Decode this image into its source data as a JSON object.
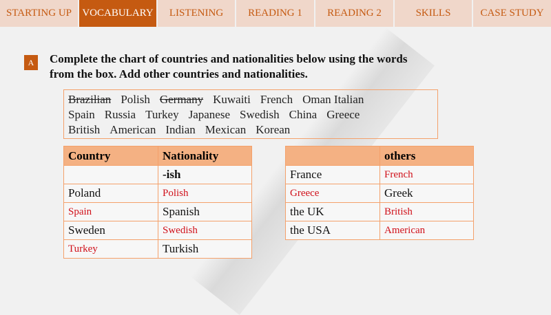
{
  "tabs": [
    {
      "label": "STARTING UP",
      "active": false
    },
    {
      "label": "VOCABULARY",
      "active": true
    },
    {
      "label": "LISTENING",
      "active": false
    },
    {
      "label": "READING 1",
      "active": false
    },
    {
      "label": "READING 2",
      "active": false
    },
    {
      "label": "SKILLS",
      "active": false
    },
    {
      "label": "CASE STUDY",
      "active": false
    }
  ],
  "exercise": {
    "badge": "A",
    "instruction_line1": "Complete the chart of countries and nationalities below using the words",
    "instruction_line2": "from the box. Add other countries and nationalities."
  },
  "word_box": {
    "row1": [
      {
        "w": "Brazilian",
        "struck": true
      },
      {
        "w": "Polish"
      },
      {
        "w": "Germany",
        "struck": true
      },
      {
        "w": "Kuwaiti"
      },
      {
        "w": "French"
      },
      {
        "w": "Oman Italian"
      }
    ],
    "row2": [
      {
        "w": "Spain"
      },
      {
        "w": "Russia"
      },
      {
        "w": "Turkey"
      },
      {
        "w": "Japanese"
      },
      {
        "w": "Swedish"
      },
      {
        "w": "China"
      },
      {
        "w": "Greece"
      }
    ],
    "row3": [
      {
        "w": "British"
      },
      {
        "w": "American"
      },
      {
        "w": "Indian"
      },
      {
        "w": "Mexican"
      },
      {
        "w": "Korean"
      }
    ]
  },
  "table_left": {
    "headers": [
      "Country",
      "Nationality"
    ],
    "subheader": "-ish",
    "rows": [
      {
        "country": "Poland",
        "nationality": "Polish",
        "answer": "nationality"
      },
      {
        "country": "Spain",
        "nationality": "Spanish",
        "answer": "country"
      },
      {
        "country": "Sweden",
        "nationality": "Swedish",
        "answer": "nationality"
      },
      {
        "country": "Turkey",
        "nationality": "Turkish",
        "answer": "country"
      }
    ]
  },
  "table_right": {
    "headers": [
      "",
      "others"
    ],
    "rows": [
      {
        "country": "France",
        "nationality": "French",
        "answer": "nationality"
      },
      {
        "country": "Greece",
        "nationality": "Greek",
        "answer": "country"
      },
      {
        "country": "the UK",
        "nationality": "British",
        "answer": "nationality"
      },
      {
        "country": "the USA",
        "nationality": "American",
        "answer": "nationality"
      }
    ]
  },
  "colors": {
    "accent": "#c55a11",
    "tab_bg": "#f0d7ca",
    "header_bg": "#f4b183",
    "border": "#f4a06a",
    "answer": "#d0101a"
  }
}
